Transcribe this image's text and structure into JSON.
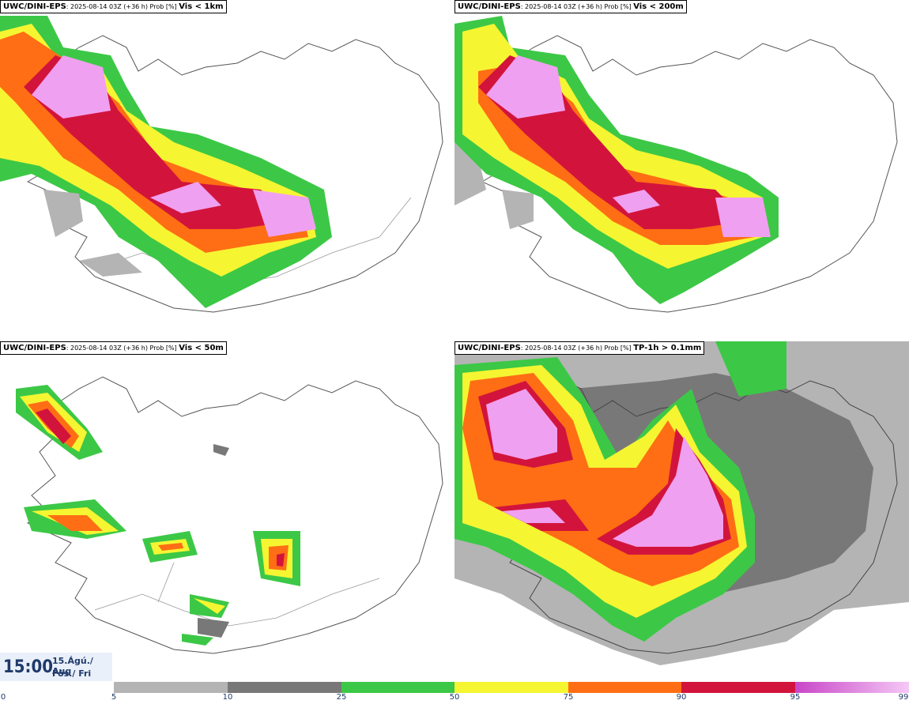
{
  "panels": [
    {
      "model": "UWC/DINI-EPS",
      "run": ": 2025-08-14 03Z (+36 h) Prob [%] ",
      "variable": "Vis < 1km"
    },
    {
      "model": "UWC/DINI-EPS",
      "run": ": 2025-08-14 03Z (+36 h) Prob [%] ",
      "variable": "Vis < 200m"
    },
    {
      "model": "UWC/DINI-EPS",
      "run": ": 2025-08-14 03Z (+36 h) Prob [%] ",
      "variable": "Vis < 50m"
    },
    {
      "model": "UWC/DINI-EPS",
      "run": ": 2025-08-14 03Z (+36 h) Prob [%] ",
      "variable": "TP-1h > 0.1mm"
    }
  ],
  "valid_time": {
    "hour": "15:00",
    "date_line": "15.Ágú./ Aug",
    "day_line": "Fös./ Fri"
  },
  "colorbar": {
    "ticks": [
      "0",
      "5",
      "10",
      "25",
      "50",
      "75",
      "90",
      "95",
      "99"
    ],
    "colors": [
      "#b4b4b4",
      "#787878",
      "#3cc846",
      "#f5f532",
      "#ff6e14",
      "#d2143c",
      "#c846c8"
    ]
  }
}
